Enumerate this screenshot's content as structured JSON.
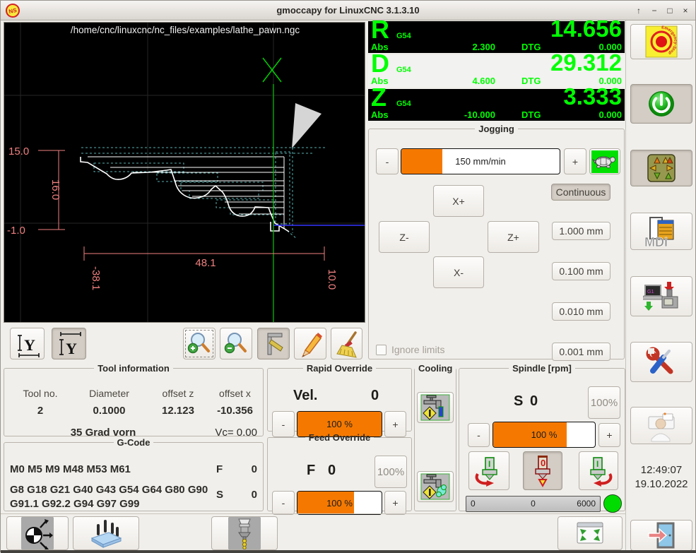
{
  "window": {
    "title": "gmoccapy for LinuxCNC  3.1.3.10",
    "logo_text": "NS",
    "controls": {
      "shade": "↑",
      "minimize": "−",
      "maximize": "□",
      "close": "×"
    }
  },
  "preview": {
    "file_path": "/home/cnc/linuxcnc/nc_files/examples/lathe_pawn.ngc",
    "dimensions": {
      "height_top": "15.0",
      "height_total": "16.0",
      "height_bottom": "-1.0",
      "length_total": "48.1",
      "length_left": "-38.1",
      "length_right": "10.0"
    }
  },
  "dro": {
    "axes": [
      {
        "letter": "R",
        "system": "G54",
        "value": "14.656",
        "abs_label": "Abs",
        "abs_value": "2.300",
        "dtg_label": "DTG",
        "dtg_value": "0.000"
      },
      {
        "letter": "D",
        "system": "G54",
        "value": "29.312",
        "abs_label": "Abs",
        "abs_value": "4.600",
        "dtg_label": "DTG",
        "dtg_value": "0.000"
      },
      {
        "letter": "Z",
        "system": "G54",
        "value": "3.333",
        "abs_label": "Abs",
        "abs_value": "-10.000",
        "dtg_label": "DTG",
        "dtg_value": "0.000"
      }
    ]
  },
  "jogging": {
    "title": "Jogging",
    "minus_label": "-",
    "plus_label": "+",
    "speed_text": "150 mm/min",
    "speed_fill_pct": 26,
    "continuous_label": "Continuous",
    "x_plus": "X+",
    "x_minus": "X-",
    "z_plus": "Z+",
    "z_minus": "Z-",
    "increments": [
      "1.000 mm",
      "0.100 mm",
      "0.010 mm",
      "0.001 mm"
    ],
    "ignore_limits_label": "Ignore limits"
  },
  "sidebar": {
    "mdi_label": "MDI",
    "time": "12:49:07",
    "date": "19.10.2022"
  },
  "tool_info": {
    "title": "Tool information",
    "headers": [
      "Tool no.",
      "Diameter",
      "offset z",
      "offset x"
    ],
    "values": [
      "2",
      "0.1000",
      "12.123",
      "-10.356"
    ],
    "description": "35 Grad vorn",
    "vc_text": "Vc= 0.00"
  },
  "gcode": {
    "title": "G-Code",
    "m_codes": "M0 M5 M9 M48 M53 M61",
    "g_codes": "G8 G18 G21 G40 G43 G54 G64 G80 G90 G91.1 G92.2 G94 G97 G99",
    "f_label": "F",
    "f_value": "0",
    "s_label": "S",
    "s_value": "0"
  },
  "rapid_override": {
    "title": "Rapid Override",
    "vel_label": "Vel.",
    "vel_value": "0",
    "minus_label": "-",
    "plus_label": "+",
    "bar_text": "100 %",
    "fill_pct": 100
  },
  "feed_override": {
    "title": "Feed Override",
    "f_label": "F",
    "f_value": "0",
    "reset_label": "100%",
    "minus_label": "-",
    "plus_label": "+",
    "bar_text": "100 %",
    "fill_pct": 67
  },
  "cooling": {
    "title": "Cooling"
  },
  "spindle": {
    "title": "Spindle [rpm]",
    "s_label": "S",
    "s_value": "0",
    "reset_label": "100%",
    "minus_label": "-",
    "plus_label": "+",
    "bar_text": "100 %",
    "fill_pct": 72,
    "scale_min": "0",
    "scale_current": "0",
    "scale_max": "6000",
    "left_glyph": "I",
    "stop_glyph": "0",
    "right_glyph": "I"
  },
  "colors": {
    "accent_orange": "#f57900",
    "dro_green": "#00ff00",
    "turtle_green": "#00e000",
    "indicator_green": "#00dc00"
  }
}
